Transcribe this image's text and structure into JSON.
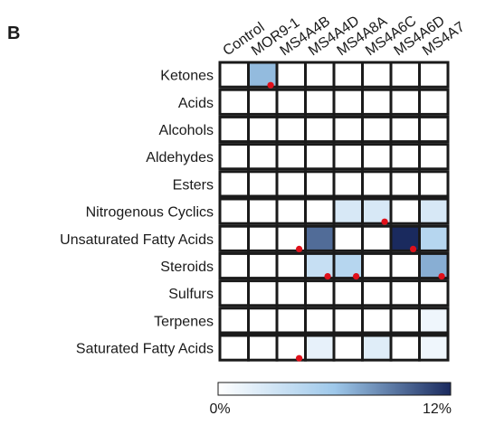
{
  "panel_letter": "B",
  "chart_data": {
    "type": "heatmap",
    "columns": [
      "Control",
      "MOR9-1",
      "MS4A4B",
      "MS4A4D",
      "MS4A8A",
      "MS4A6C",
      "MS4A6D",
      "MS4A7"
    ],
    "rows": [
      "Ketones",
      "Acids",
      "Alcohols",
      "Aldehydes",
      "Esters",
      "Nitrogenous Cyclics",
      "Unsaturated Fatty Acids",
      "Steroids",
      "Sulfurs",
      "Terpenes",
      "Saturated Fatty Acids"
    ],
    "values": [
      [
        0,
        6.5,
        0,
        0,
        0,
        0,
        0,
        0
      ],
      [
        0,
        0,
        0,
        0,
        0,
        0,
        0,
        0
      ],
      [
        0,
        0,
        0,
        0,
        0,
        0,
        0,
        0
      ],
      [
        0,
        0,
        0,
        0,
        0,
        0,
        0,
        0
      ],
      [
        0,
        0,
        0,
        0,
        0,
        0,
        0,
        0
      ],
      [
        0,
        0,
        0,
        0,
        2.5,
        2.5,
        0,
        2.5
      ],
      [
        0,
        0,
        0,
        9.5,
        0,
        0,
        12,
        4.5
      ],
      [
        0,
        0,
        0,
        3.5,
        4.5,
        0,
        0,
        7
      ],
      [
        0,
        0,
        0,
        0,
        0,
        0,
        0,
        0
      ],
      [
        0,
        0,
        0,
        0,
        0,
        0,
        0,
        1
      ],
      [
        0,
        0,
        0,
        1.5,
        0,
        2,
        0,
        1
      ]
    ],
    "significant": [
      [
        0,
        1
      ],
      [
        5,
        5
      ],
      [
        6,
        2
      ],
      [
        6,
        6
      ],
      [
        7,
        3
      ],
      [
        7,
        4
      ],
      [
        7,
        7
      ],
      [
        10,
        2
      ]
    ],
    "colorbar": {
      "min": 0,
      "max": 12,
      "min_label": "0%",
      "max_label": "12%",
      "color_low": "#ffffff",
      "color_high": "#1a2a5e"
    },
    "marker_color": "#e0101a",
    "grid_color": "#1a1a1a"
  }
}
